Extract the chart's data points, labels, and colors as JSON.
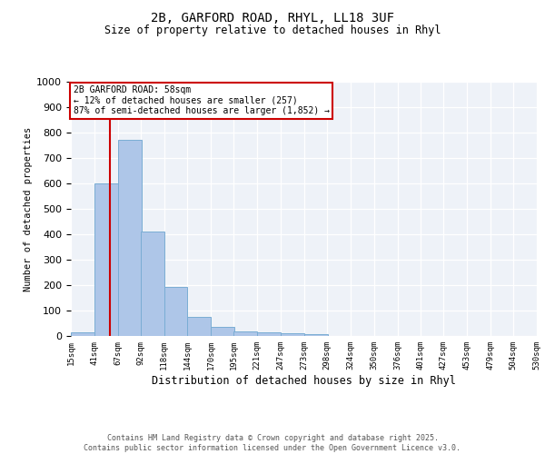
{
  "title_line1": "2B, GARFORD ROAD, RHYL, LL18 3UF",
  "title_line2": "Size of property relative to detached houses in Rhyl",
  "xlabel": "Distribution of detached houses by size in Rhyl",
  "ylabel": "Number of detached properties",
  "bin_labels": [
    "15sqm",
    "41sqm",
    "67sqm",
    "92sqm",
    "118sqm",
    "144sqm",
    "170sqm",
    "195sqm",
    "221sqm",
    "247sqm",
    "273sqm",
    "298sqm",
    "324sqm",
    "350sqm",
    "376sqm",
    "401sqm",
    "427sqm",
    "453sqm",
    "479sqm",
    "504sqm",
    "530sqm"
  ],
  "bin_edges": [
    15,
    41,
    67,
    92,
    118,
    144,
    170,
    195,
    221,
    247,
    273,
    298,
    324,
    350,
    376,
    401,
    427,
    453,
    479,
    504,
    530
  ],
  "bar_heights": [
    15,
    600,
    770,
    410,
    193,
    75,
    37,
    18,
    15,
    12,
    7,
    0,
    0,
    0,
    0,
    0,
    0,
    0,
    0,
    0
  ],
  "bar_color": "#aec6e8",
  "bar_edge_color": "#7aadd4",
  "property_line_x": 58,
  "property_line_color": "#cc0000",
  "annotation_title": "2B GARFORD ROAD: 58sqm",
  "annotation_line2": "← 12% of detached houses are smaller (257)",
  "annotation_line3": "87% of semi-detached houses are larger (1,852) →",
  "annotation_box_color": "#cc0000",
  "ylim": [
    0,
    1000
  ],
  "yticks": [
    0,
    100,
    200,
    300,
    400,
    500,
    600,
    700,
    800,
    900,
    1000
  ],
  "background_color": "#eef2f8",
  "footer_line1": "Contains HM Land Registry data © Crown copyright and database right 2025.",
  "footer_line2": "Contains public sector information licensed under the Open Government Licence v3.0.",
  "figsize": [
    6.0,
    5.0
  ],
  "dpi": 100
}
